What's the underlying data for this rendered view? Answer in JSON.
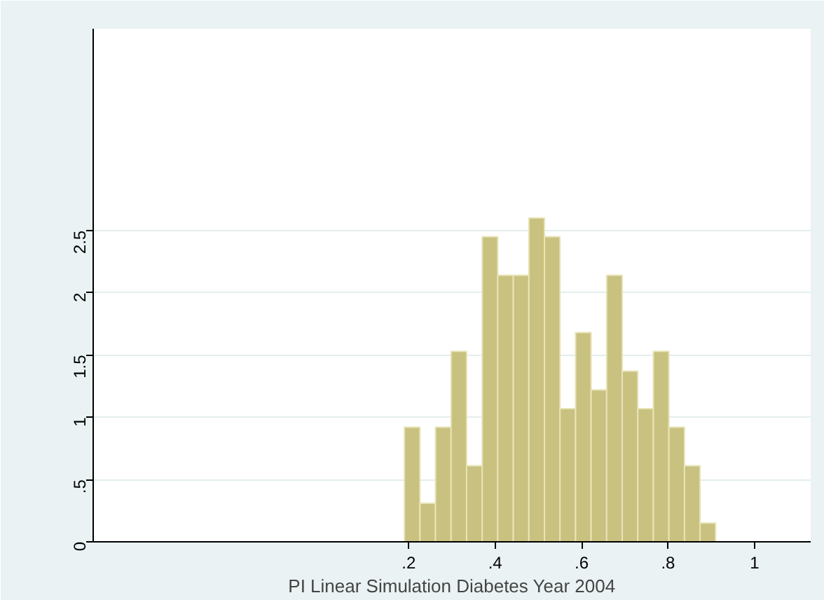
{
  "chart_data": {
    "type": "histogram",
    "xlabel": "PI Linear Simulation Diabetes Year 2004",
    "bins": [
      0.19,
      0.226,
      0.262,
      0.298,
      0.334,
      0.37,
      0.406,
      0.442,
      0.478,
      0.514,
      0.55,
      0.586,
      0.622,
      0.658,
      0.694,
      0.73,
      0.766,
      0.802,
      0.838,
      0.874,
      0.91
    ],
    "values": [
      0.92,
      0.31,
      0.92,
      1.53,
      0.61,
      2.45,
      2.14,
      2.14,
      2.6,
      2.45,
      1.07,
      1.68,
      1.22,
      2.14,
      1.37,
      1.07,
      1.53,
      0.92,
      0.61,
      0.15
    ],
    "color": "#c9c17f",
    "xlim": [
      -0.53,
      1.13
    ],
    "ylim": [
      0,
      4.12
    ],
    "xticks": [
      {
        "value": 0.2,
        "label": ".2"
      },
      {
        "value": 0.4,
        "label": ".4"
      },
      {
        "value": 0.6,
        "label": ".6"
      },
      {
        "value": 0.8,
        "label": ".8"
      },
      1
    ],
    "yticks": [
      0,
      {
        "value": 0.5,
        "label": ".5"
      },
      1,
      1.5,
      2,
      2.5
    ],
    "grid": "y"
  }
}
